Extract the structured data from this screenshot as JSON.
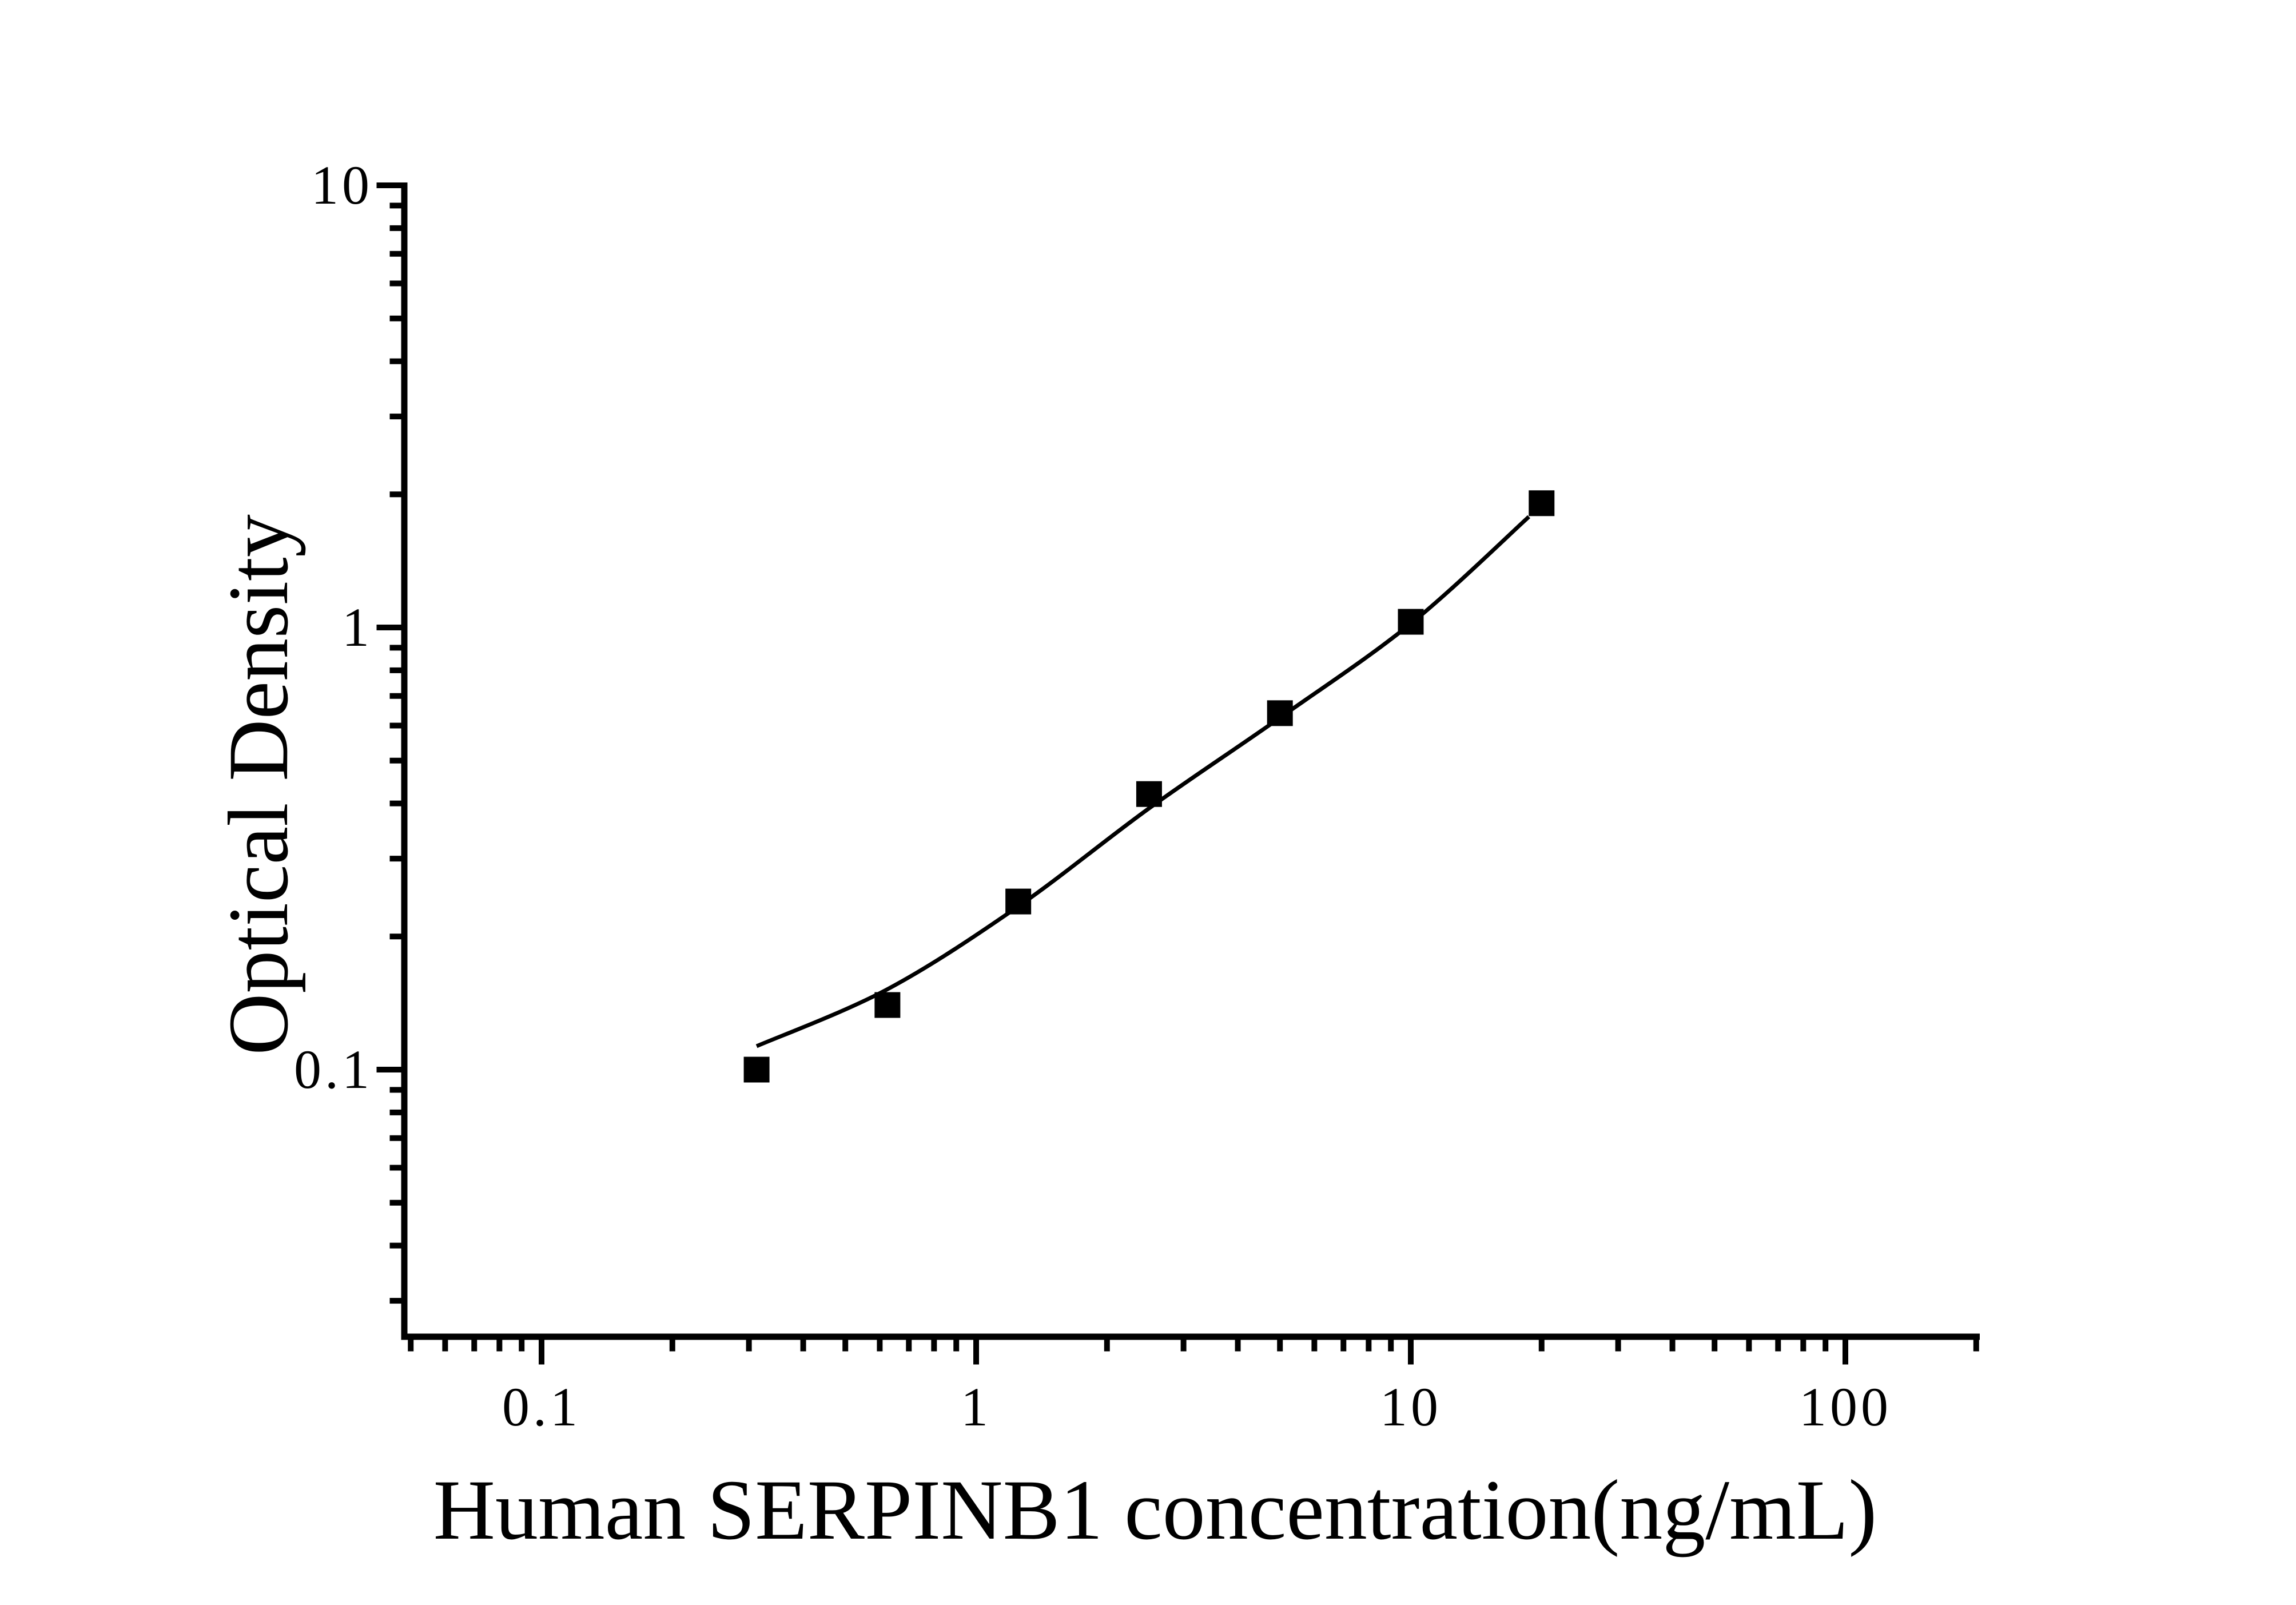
{
  "chart_data": {
    "type": "scatter",
    "title": "",
    "xlabel": "Human SERPINB1 concentration(ng/mL)",
    "ylabel": "Optical Density",
    "x_scale": "log",
    "y_scale": "log",
    "x_range": [
      0.048,
      200.5
    ],
    "y_range": [
      0.0249,
      10
    ],
    "x_ticks_major": [
      0.1,
      1,
      10,
      100
    ],
    "x_tick_labels": [
      "0.1",
      "1",
      "10",
      "100"
    ],
    "y_ticks_major": [
      0.1,
      1,
      10
    ],
    "y_tick_labels": [
      "0.1",
      "1",
      "10"
    ],
    "grid": false,
    "legend": false,
    "series": [
      {
        "name": "standard-points",
        "marker": "filled-square",
        "color": "#000000",
        "x": [
          0.3125,
          0.625,
          1.25,
          2.5,
          5,
          10,
          20
        ],
        "y": [
          0.1,
          0.14,
          0.24,
          0.42,
          0.64,
          1.03,
          1.91
        ]
      }
    ],
    "fit_curve": {
      "name": "fitted-standard-curve",
      "color": "#000000",
      "points": [
        [
          0.3125,
          0.113
        ],
        [
          0.625,
          0.152
        ],
        [
          1.25,
          0.234
        ],
        [
          2.5,
          0.39
        ],
        [
          5,
          0.625
        ],
        [
          10,
          1.02
        ],
        [
          18.7,
          1.78
        ]
      ]
    },
    "colors": {
      "foreground": "#000000",
      "background": "#ffffff"
    }
  }
}
